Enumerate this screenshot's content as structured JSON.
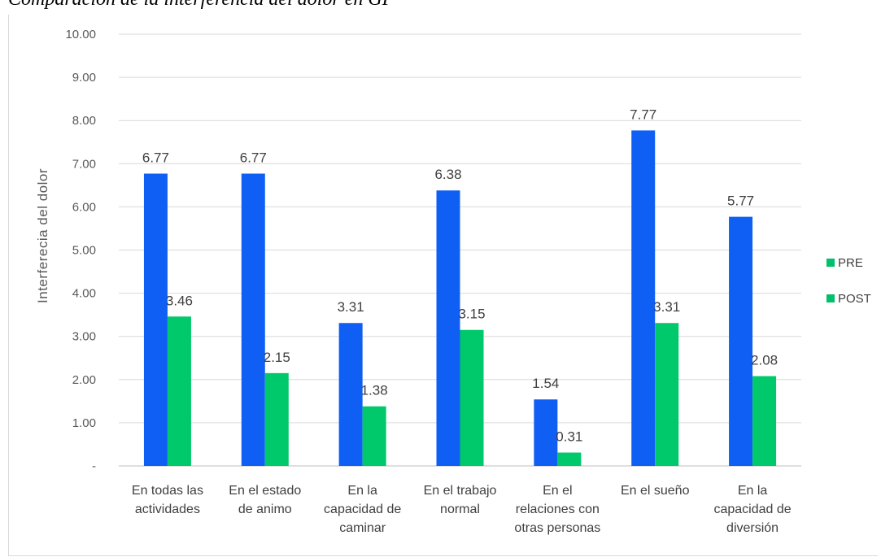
{
  "title": "Comparación de la interferencia del dolor en GP",
  "chart_data": {
    "type": "bar",
    "ylabel": "Interferecia del dolor",
    "xlabel": "",
    "ylim": [
      0,
      10
    ],
    "yticks": [
      "-",
      "1.00",
      "2.00",
      "3.00",
      "4.00",
      "5.00",
      "6.00",
      "7.00",
      "8.00",
      "9.00",
      "10.00"
    ],
    "categories": [
      [
        "En todas las",
        "actividades"
      ],
      [
        "En el estado",
        "de animo"
      ],
      [
        "En la",
        "capacidad de",
        "caminar"
      ],
      [
        "En el trabajo",
        "normal"
      ],
      [
        "En el",
        "relaciones con",
        "otras personas"
      ],
      [
        "En el sueño"
      ],
      [
        "En la",
        "capacidad de",
        "diversión"
      ]
    ],
    "series": [
      {
        "name": "PRE",
        "color": "#0f5ff5",
        "legend_color": "#00c06b",
        "values": [
          6.77,
          6.77,
          3.31,
          6.38,
          1.54,
          7.77,
          5.77
        ],
        "labels": [
          "6.77",
          "6.77",
          "3.31",
          "6.38",
          "1.54",
          "7.77",
          "5.77"
        ]
      },
      {
        "name": "POST",
        "color": "#00c96b",
        "legend_color": "#00c06b",
        "values": [
          3.46,
          2.15,
          1.38,
          3.15,
          0.31,
          3.31,
          2.08
        ],
        "labels": [
          "3.46",
          "2.15",
          "1.38",
          "3.15",
          "0.31",
          "3.31",
          "2.08"
        ]
      }
    ],
    "grid": true,
    "legend_position": "right"
  }
}
